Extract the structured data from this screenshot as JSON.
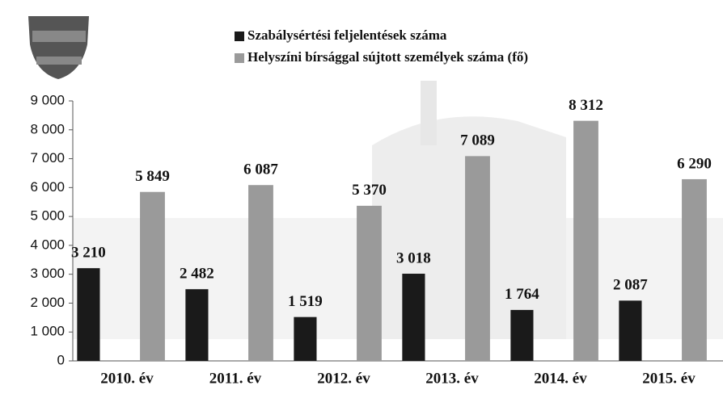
{
  "chart_data": {
    "type": "bar",
    "categories": [
      "2010. év",
      "2011. év",
      "2012. év",
      "2013. év",
      "2014. év",
      "2015. év"
    ],
    "series": [
      {
        "name": "Szabálysértési feljelentések száma",
        "color": "#1a1a1a",
        "values": [
          3210,
          2482,
          1519,
          3018,
          1764,
          2087
        ],
        "value_labels": [
          "3 210",
          "2 482",
          "1 519",
          "3 018",
          "1 764",
          "2 087"
        ]
      },
      {
        "name": "Helyszíni bírsággal sújtott személyek száma (fő)",
        "color": "#9a9a9a",
        "values": [
          5849,
          6087,
          5370,
          7089,
          8312,
          6290
        ],
        "value_labels": [
          "5 849",
          "6 087",
          "5 370",
          "7 089",
          "8 312",
          "6 290"
        ]
      }
    ],
    "ylim": [
      0,
      9000
    ],
    "yticks": [
      0,
      {
        "value": 1000,
        "label": "1 000"
      },
      {
        "value": 2000,
        "label": "2 000"
      },
      {
        "value": 3000,
        "label": "3 000"
      },
      {
        "value": 4000,
        "label": "4 000"
      },
      {
        "value": 5000,
        "label": "5 000"
      },
      {
        "value": 6000,
        "label": "6 000"
      },
      {
        "value": 7000,
        "label": "7 000"
      },
      {
        "value": 8000,
        "label": "8 000"
      },
      {
        "value": 9000,
        "label": "9 000"
      }
    ]
  }
}
